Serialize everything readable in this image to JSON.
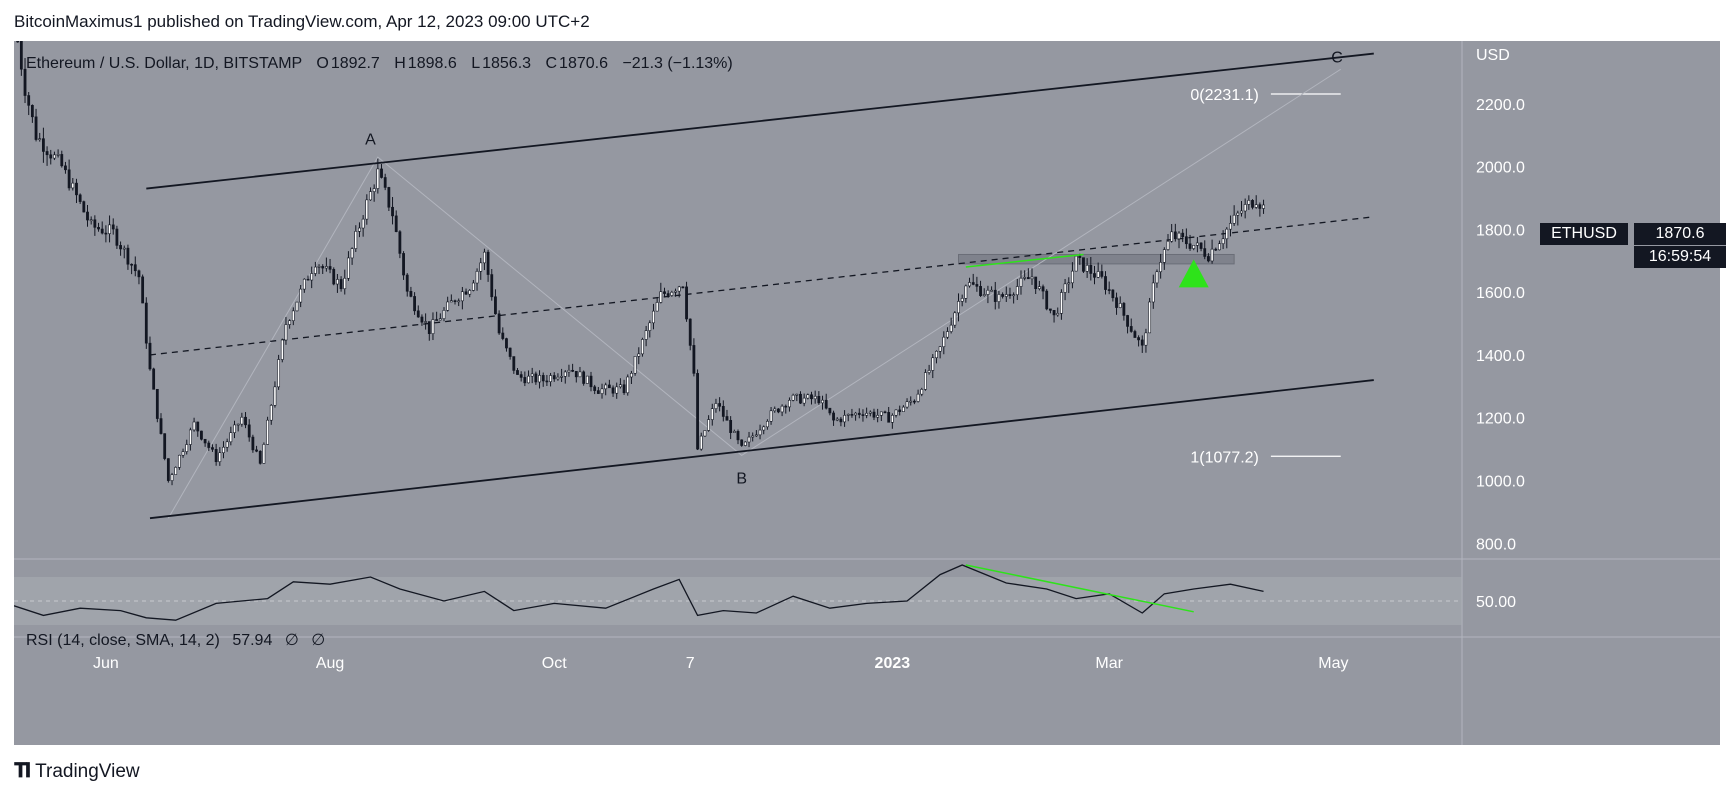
{
  "header": {
    "publisher": "BitcoinMaximus1 published on TradingView.com, Apr 12, 2023 09:00 UTC+2"
  },
  "legend": {
    "title": "Ethereum / U.S. Dollar, 1D, BITSTAMP",
    "open_label": "O",
    "open": "1892.7",
    "high_label": "H",
    "high": "1898.6",
    "low_label": "L",
    "low": "1856.3",
    "close_label": "C",
    "close": "1870.6",
    "change": "−21.3 (−1.13%)"
  },
  "price_tag": {
    "symbol": "ETHUSD",
    "price": "1870.6",
    "countdown": "16:59:54"
  },
  "rsi_legend": {
    "label": "RSI (14, close, SMA, 14, 2)",
    "value": "57.94",
    "extra1": "∅",
    "extra2": "∅"
  },
  "footer": {
    "brand": "TradingView"
  },
  "colors": {
    "background": "#9598a1",
    "candle_up": "#ffffff",
    "candle_down": "#131722",
    "green": "#2ee31a",
    "support_zone": "#787b86"
  },
  "chart_data": {
    "type": "candlestick",
    "symbol": "ETHUSD",
    "timeframe": "1D",
    "yaxis_unit": "USD",
    "ylim": [
      750,
      2400
    ],
    "y_ticks": [
      800,
      1000,
      1200,
      1400,
      1600,
      1800,
      2000,
      2200
    ],
    "x_ticks": [
      {
        "label": "Jun",
        "date": "2022-06-01"
      },
      {
        "label": "Aug",
        "date": "2022-08-01"
      },
      {
        "label": "Oct",
        "date": "2022-10-01"
      },
      {
        "label": "7",
        "date": "2022-11-07"
      },
      {
        "label": "2023",
        "date": "2023-01-01"
      },
      {
        "label": "Mar",
        "date": "2023-03-01"
      },
      {
        "label": "May",
        "date": "2023-05-01"
      }
    ],
    "xlim": [
      "2022-05-07",
      "2023-06-05"
    ],
    "price_path": [
      [
        "2022-05-08",
        2400
      ],
      [
        "2022-05-10",
        2250
      ],
      [
        "2022-05-13",
        2100
      ],
      [
        "2022-05-20",
        2000
      ],
      [
        "2022-05-28",
        1810
      ],
      [
        "2022-06-03",
        1790
      ],
      [
        "2022-06-10",
        1650
      ],
      [
        "2022-06-13",
        1350
      ],
      [
        "2022-06-18",
        1000
      ],
      [
        "2022-06-25",
        1180
      ],
      [
        "2022-07-01",
        1070
      ],
      [
        "2022-07-08",
        1200
      ],
      [
        "2022-07-13",
        1050
      ],
      [
        "2022-07-20",
        1500
      ],
      [
        "2022-07-28",
        1700
      ],
      [
        "2022-08-04",
        1620
      ],
      [
        "2022-08-10",
        1850
      ],
      [
        "2022-08-14",
        1980
      ],
      [
        "2022-08-18",
        1850
      ],
      [
        "2022-08-22",
        1600
      ],
      [
        "2022-08-28",
        1480
      ],
      [
        "2022-09-04",
        1580
      ],
      [
        "2022-09-08",
        1620
      ],
      [
        "2022-09-12",
        1720
      ],
      [
        "2022-09-16",
        1470
      ],
      [
        "2022-09-21",
        1330
      ],
      [
        "2022-09-28",
        1320
      ],
      [
        "2022-10-05",
        1360
      ],
      [
        "2022-10-13",
        1290
      ],
      [
        "2022-10-20",
        1290
      ],
      [
        "2022-10-26",
        1470
      ],
      [
        "2022-10-30",
        1590
      ],
      [
        "2022-11-05",
        1630
      ],
      [
        "2022-11-08",
        1330
      ],
      [
        "2022-11-09",
        1100
      ],
      [
        "2022-11-14",
        1250
      ],
      [
        "2022-11-21",
        1100
      ],
      [
        "2022-11-28",
        1200
      ],
      [
        "2022-12-04",
        1260
      ],
      [
        "2022-12-12",
        1260
      ],
      [
        "2022-12-16",
        1190
      ],
      [
        "2022-12-24",
        1220
      ],
      [
        "2022-12-31",
        1200
      ],
      [
        "2023-01-07",
        1260
      ],
      [
        "2023-01-14",
        1420
      ],
      [
        "2023-01-21",
        1630
      ],
      [
        "2023-01-30",
        1580
      ],
      [
        "2023-02-08",
        1650
      ],
      [
        "2023-02-14",
        1520
      ],
      [
        "2023-02-20",
        1700
      ],
      [
        "2023-02-27",
        1640
      ],
      [
        "2023-03-03",
        1570
      ],
      [
        "2023-03-10",
        1420
      ],
      [
        "2023-03-14",
        1680
      ],
      [
        "2023-03-18",
        1780
      ],
      [
        "2023-03-24",
        1750
      ],
      [
        "2023-03-28",
        1720
      ],
      [
        "2023-04-02",
        1800
      ],
      [
        "2023-04-06",
        1860
      ],
      [
        "2023-04-10",
        1900
      ],
      [
        "2023-04-12",
        1870
      ]
    ],
    "channel": {
      "upper": [
        [
          "2022-06-12",
          1930
        ],
        [
          "2023-05-12",
          2360
        ]
      ],
      "lower": [
        [
          "2022-06-13",
          880
        ],
        [
          "2023-05-12",
          1320
        ]
      ],
      "middle": [
        [
          "2022-06-13",
          1400
        ],
        [
          "2023-05-12",
          1840
        ]
      ]
    },
    "wave_path": [
      [
        "2022-06-18",
        880
      ],
      [
        "2022-08-14",
        2030
      ],
      [
        "2022-11-21",
        1080
      ],
      [
        "2023-05-03",
        2310
      ]
    ],
    "wave_labels": [
      {
        "text": "A",
        "date": "2022-08-12",
        "price": 2090
      },
      {
        "text": "B",
        "date": "2022-11-21",
        "price": 1010
      },
      {
        "text": "C",
        "date": "2023-05-02",
        "price": 2350
      }
    ],
    "fib_levels": [
      {
        "label": "0(2231.1)",
        "value": 2231.1
      },
      {
        "label": "1(1077.2)",
        "value": 1077.2
      }
    ],
    "fib_range": [
      "2023-04-14",
      "2023-05-03"
    ],
    "support_zone": {
      "from": "2023-01-19",
      "to": "2023-04-04",
      "low": 1690,
      "high": 1720
    },
    "green_trendline": [
      [
        "2023-01-21",
        1680
      ],
      [
        "2023-02-22",
        1720
      ]
    ],
    "green_arrow": {
      "date": "2023-03-24",
      "price": 1660
    },
    "rsi": {
      "ylim": [
        20,
        85
      ],
      "y_ticks": [
        50
      ],
      "band": [
        30,
        70
      ],
      "path": [
        [
          "2022-05-07",
          46
        ],
        [
          "2022-05-15",
          38
        ],
        [
          "2022-05-25",
          44
        ],
        [
          "2022-06-05",
          42
        ],
        [
          "2022-06-12",
          36
        ],
        [
          "2022-06-20",
          34
        ],
        [
          "2022-07-01",
          48
        ],
        [
          "2022-07-15",
          52
        ],
        [
          "2022-07-22",
          66
        ],
        [
          "2022-08-01",
          64
        ],
        [
          "2022-08-12",
          70
        ],
        [
          "2022-08-20",
          60
        ],
        [
          "2022-09-01",
          50
        ],
        [
          "2022-09-12",
          58
        ],
        [
          "2022-09-20",
          42
        ],
        [
          "2022-10-01",
          48
        ],
        [
          "2022-10-15",
          44
        ],
        [
          "2022-10-28",
          60
        ],
        [
          "2022-11-04",
          68
        ],
        [
          "2022-11-09",
          38
        ],
        [
          "2022-11-16",
          42
        ],
        [
          "2022-11-25",
          40
        ],
        [
          "2022-12-05",
          54
        ],
        [
          "2022-12-15",
          44
        ],
        [
          "2022-12-25",
          48
        ],
        [
          "2023-01-05",
          50
        ],
        [
          "2023-01-14",
          72
        ],
        [
          "2023-01-20",
          80
        ],
        [
          "2023-02-01",
          65
        ],
        [
          "2023-02-12",
          60
        ],
        [
          "2023-02-20",
          52
        ],
        [
          "2023-03-01",
          56
        ],
        [
          "2023-03-10",
          40
        ],
        [
          "2023-03-16",
          56
        ],
        [
          "2023-03-24",
          60
        ],
        [
          "2023-04-03",
          64
        ],
        [
          "2023-04-12",
          58
        ]
      ],
      "green_trendline": [
        [
          "2023-01-21",
          80
        ],
        [
          "2023-03-24",
          41
        ]
      ]
    }
  }
}
